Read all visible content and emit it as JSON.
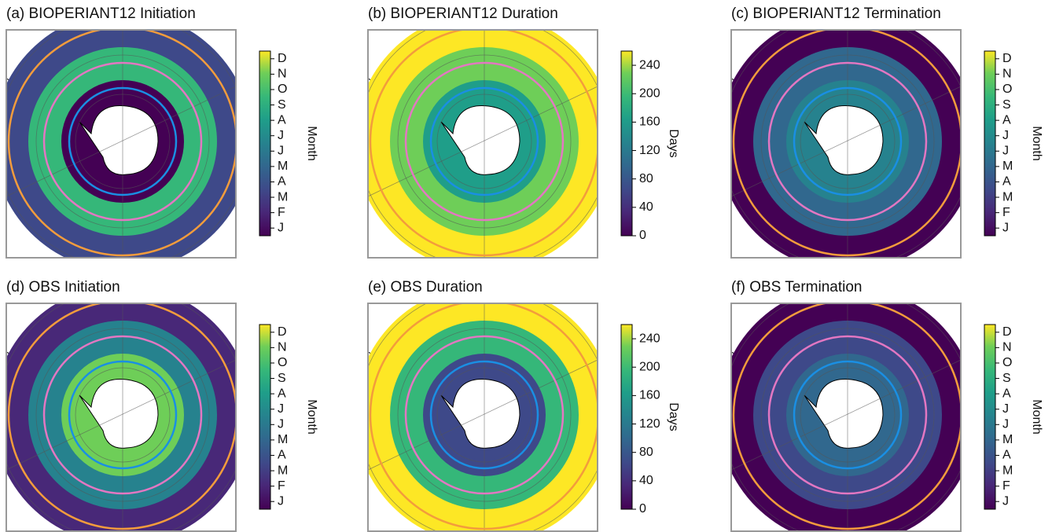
{
  "panels": [
    {
      "title": "(a) BIOPERIANT12 Initiation",
      "colorbar": {
        "label": "Month",
        "ticks": [
          "J",
          "F",
          "M",
          "A",
          "M",
          "J",
          "J",
          "A",
          "S",
          "O",
          "N",
          "D"
        ]
      }
    },
    {
      "title": "(b) BIOPERIANT12 Duration",
      "colorbar": {
        "label": "Days",
        "lim": [
          0,
          260
        ],
        "ticks": [
          0,
          40,
          80,
          120,
          160,
          200,
          240
        ]
      }
    },
    {
      "title": "(c) BIOPERIANT12 Termination",
      "colorbar": {
        "label": "Month",
        "ticks": [
          "J",
          "F",
          "M",
          "A",
          "M",
          "J",
          "J",
          "A",
          "S",
          "O",
          "N",
          "D"
        ]
      }
    },
    {
      "title": "(d) OBS Initiation",
      "colorbar": {
        "label": "Month",
        "ticks": [
          "J",
          "F",
          "M",
          "A",
          "M",
          "J",
          "J",
          "A",
          "S",
          "O",
          "N",
          "D"
        ]
      }
    },
    {
      "title": "(e) OBS Duration",
      "colorbar": {
        "label": "Days",
        "lim": [
          0,
          260
        ],
        "ticks": [
          0,
          40,
          80,
          120,
          160,
          200,
          240
        ]
      }
    },
    {
      "title": "(f) OBS Termination",
      "colorbar": {
        "label": "Month",
        "ticks": [
          "J",
          "F",
          "M",
          "A",
          "M",
          "J",
          "J",
          "A",
          "S",
          "O",
          "N",
          "D"
        ]
      }
    }
  ]
}
